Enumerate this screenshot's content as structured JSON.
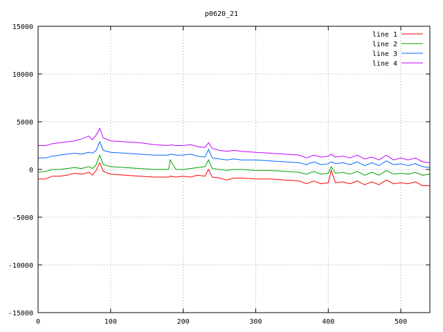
{
  "chart_data": {
    "type": "line",
    "title": "p0620_21",
    "xlabel": "",
    "ylabel": "",
    "xlim": [
      0,
      540
    ],
    "ylim": [
      -15000,
      15000
    ],
    "grid": true,
    "legend_placement": "top-right",
    "xticks": [
      0,
      100,
      200,
      300,
      400,
      500
    ],
    "yticks": [
      15000,
      10000,
      5000,
      0,
      -5000,
      -10000,
      -15000
    ],
    "series": [
      {
        "name": "line 1",
        "color": "#ff0000",
        "x": [
          0,
          10,
          20,
          30,
          40,
          50,
          60,
          70,
          75,
          80,
          85,
          90,
          100,
          120,
          140,
          160,
          180,
          182,
          190,
          200,
          210,
          220,
          230,
          235,
          240,
          250,
          260,
          270,
          280,
          300,
          320,
          340,
          360,
          370,
          380,
          390,
          400,
          404,
          410,
          420,
          430,
          440,
          450,
          460,
          470,
          480,
          490,
          500,
          510,
          520,
          530,
          540
        ],
        "y": [
          -1000,
          -1000,
          -700,
          -700,
          -600,
          -400,
          -500,
          -300,
          -600,
          -100,
          700,
          -200,
          -500,
          -600,
          -700,
          -800,
          -800,
          -700,
          -800,
          -700,
          -800,
          -600,
          -700,
          0,
          -800,
          -900,
          -1100,
          -900,
          -900,
          -1000,
          -1000,
          -1100,
          -1200,
          -1500,
          -1200,
          -1500,
          -1400,
          -100,
          -1400,
          -1300,
          -1500,
          -1200,
          -1600,
          -1300,
          -1600,
          -1100,
          -1500,
          -1400,
          -1500,
          -1300,
          -1700,
          -1700
        ]
      },
      {
        "name": "line 2",
        "color": "#00a000",
        "x": [
          0,
          10,
          20,
          30,
          40,
          50,
          60,
          70,
          75,
          80,
          85,
          90,
          100,
          120,
          140,
          160,
          180,
          182,
          190,
          200,
          210,
          220,
          230,
          235,
          240,
          250,
          260,
          270,
          280,
          300,
          320,
          340,
          360,
          370,
          380,
          390,
          400,
          404,
          410,
          420,
          430,
          440,
          450,
          460,
          470,
          480,
          490,
          500,
          510,
          520,
          530,
          540
        ],
        "y": [
          -300,
          -200,
          0,
          0,
          100,
          200,
          100,
          300,
          100,
          500,
          1500,
          500,
          300,
          200,
          100,
          0,
          0,
          1000,
          0,
          0,
          100,
          200,
          300,
          1000,
          100,
          0,
          -100,
          0,
          0,
          -100,
          -100,
          -200,
          -300,
          -500,
          -200,
          -500,
          -400,
          300,
          -400,
          -300,
          -500,
          -200,
          -600,
          -300,
          -600,
          -100,
          -500,
          -400,
          -500,
          -300,
          -600,
          -500
        ]
      },
      {
        "name": "line 3",
        "color": "#0066ff",
        "x": [
          0,
          10,
          20,
          30,
          40,
          50,
          60,
          70,
          75,
          80,
          85,
          90,
          100,
          120,
          140,
          160,
          180,
          182,
          190,
          200,
          210,
          220,
          230,
          235,
          240,
          250,
          260,
          270,
          280,
          300,
          320,
          340,
          360,
          370,
          380,
          390,
          400,
          404,
          410,
          420,
          430,
          440,
          450,
          460,
          470,
          480,
          490,
          500,
          510,
          520,
          530,
          540
        ],
        "y": [
          1200,
          1200,
          1400,
          1500,
          1600,
          1700,
          1600,
          1800,
          1700,
          2000,
          2900,
          2000,
          1800,
          1700,
          1600,
          1500,
          1500,
          1600,
          1500,
          1500,
          1600,
          1400,
          1300,
          2100,
          1200,
          1100,
          1000,
          1100,
          1000,
          1000,
          900,
          800,
          700,
          500,
          800,
          500,
          600,
          800,
          600,
          700,
          500,
          800,
          400,
          700,
          400,
          900,
          500,
          600,
          400,
          600,
          300,
          200
        ]
      },
      {
        "name": "line 4",
        "color": "#c000ff",
        "x": [
          0,
          10,
          20,
          30,
          40,
          50,
          60,
          70,
          75,
          80,
          85,
          90,
          100,
          120,
          140,
          160,
          180,
          182,
          190,
          200,
          210,
          220,
          230,
          235,
          240,
          250,
          260,
          270,
          280,
          300,
          320,
          340,
          360,
          370,
          380,
          390,
          400,
          404,
          410,
          420,
          430,
          440,
          450,
          460,
          470,
          480,
          490,
          500,
          510,
          520,
          530,
          540
        ],
        "y": [
          2500,
          2500,
          2700,
          2800,
          2900,
          3000,
          3200,
          3500,
          3100,
          3600,
          4300,
          3300,
          3000,
          2900,
          2800,
          2600,
          2500,
          2600,
          2500,
          2500,
          2600,
          2400,
          2300,
          2800,
          2200,
          2000,
          1900,
          2000,
          1900,
          1800,
          1700,
          1600,
          1500,
          1200,
          1500,
          1300,
          1400,
          1600,
          1300,
          1400,
          1200,
          1500,
          1100,
          1300,
          1000,
          1500,
          1000,
          1200,
          1000,
          1200,
          800,
          700
        ]
      }
    ]
  }
}
